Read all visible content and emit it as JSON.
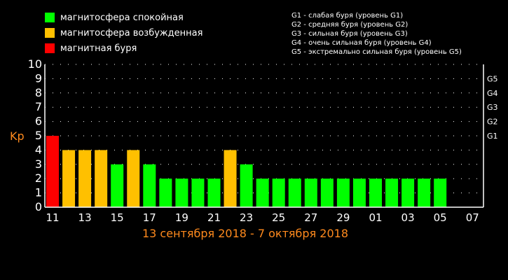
{
  "legend": {
    "items": [
      {
        "label": "магнитосфера спокойная",
        "color": "#00ff00"
      },
      {
        "label": "магнитосфера возбужденная",
        "color": "#ffc000"
      },
      {
        "label": "магнитная буря",
        "color": "#ff0000"
      }
    ],
    "g_scale": [
      "G1 - слабая буря (уровень G1)",
      "G2 - средняя буря (уровень G2)",
      "G3 - сильная буря (уровень G3)",
      "G4 - очень сильная буря (уровень G4)",
      "G5 - экстремально сильная буря (уровень G5)"
    ]
  },
  "date_range": "13 сентября 2018 - 7 октября 2018",
  "chart_data": {
    "type": "bar",
    "ylabel": "Kp",
    "ylim": [
      0,
      10
    ],
    "yticks": [
      0,
      1,
      2,
      3,
      4,
      5,
      6,
      7,
      8,
      9,
      10
    ],
    "x_ticks": [
      "11",
      "13",
      "15",
      "17",
      "19",
      "21",
      "23",
      "25",
      "27",
      "29",
      "01",
      "03",
      "05",
      "07"
    ],
    "g_levels": [
      {
        "label": "G1",
        "value": 5
      },
      {
        "label": "G2",
        "value": 6
      },
      {
        "label": "G3",
        "value": 7
      },
      {
        "label": "G4",
        "value": 8
      },
      {
        "label": "G5",
        "value": 9
      }
    ],
    "values": [
      5,
      4,
      4,
      4,
      3,
      4,
      3,
      2,
      2,
      2,
      2,
      4,
      3,
      2,
      2,
      2,
      2,
      2,
      2,
      2,
      2,
      2,
      2,
      2,
      2
    ],
    "colors": {
      "quiet": "#00ff00",
      "active": "#ffc000",
      "storm": "#ff0000"
    },
    "grid": true
  }
}
